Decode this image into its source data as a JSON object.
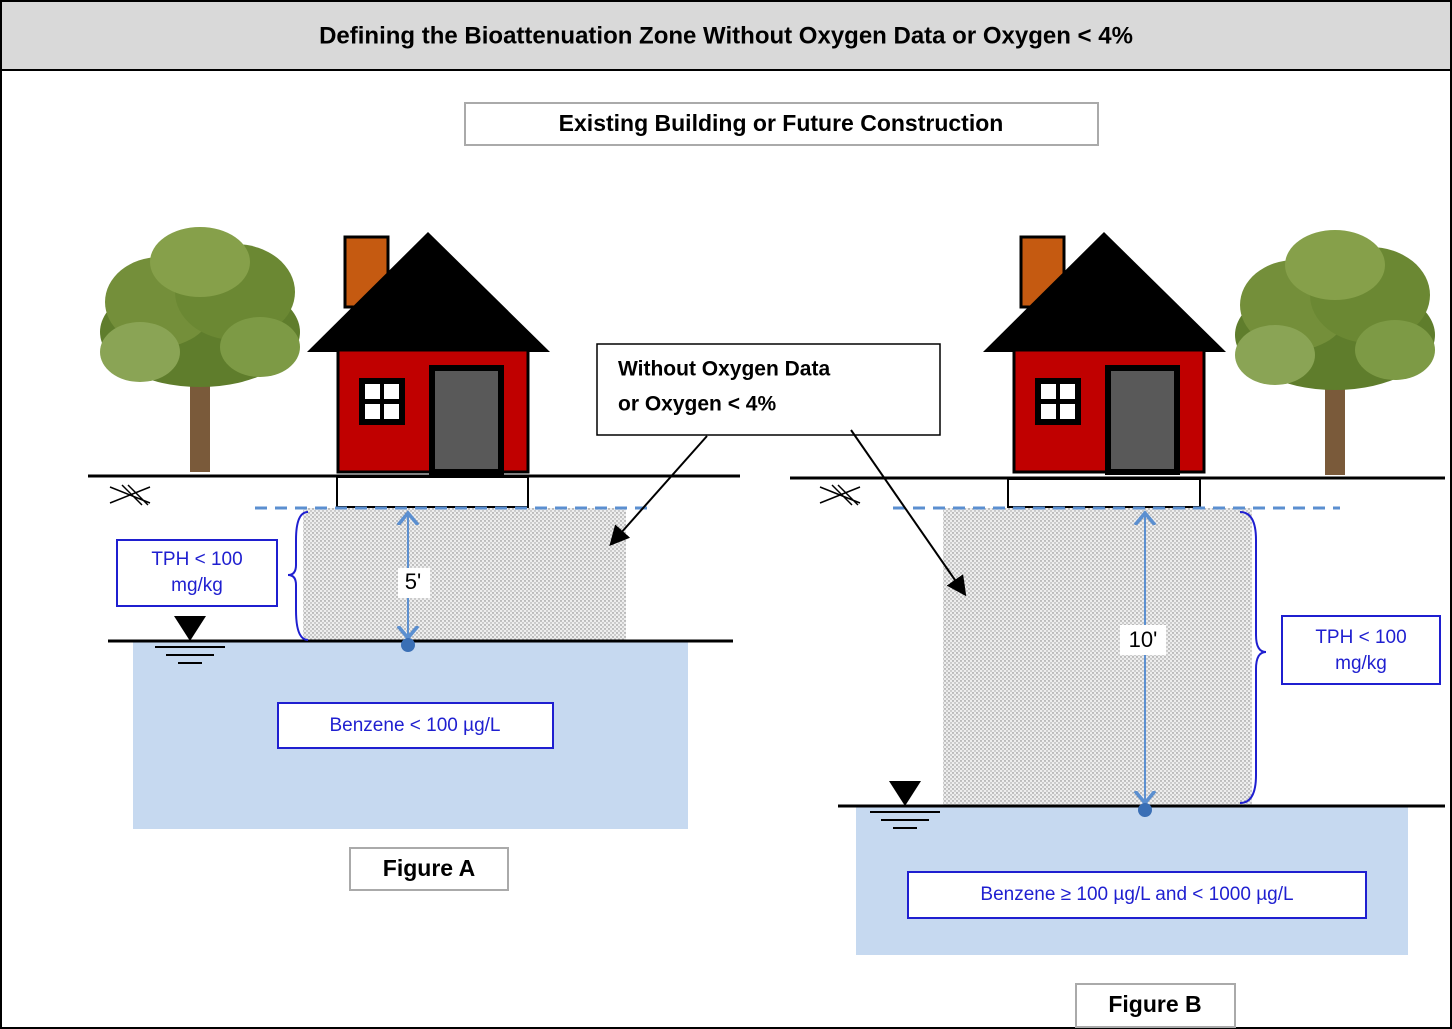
{
  "title": "Defining the Bioattenuation Zone Without Oxygen Data or Oxygen < 4%",
  "subtitle": "Existing Building or Future Construction",
  "callout": {
    "lines": [
      "Without Oxygen Data",
      "or Oxygen < 4%"
    ]
  },
  "figure_a": {
    "label": "Figure A",
    "tph": [
      "TPH < 100",
      "mg/kg"
    ],
    "depth": "5'",
    "benzene": "Benzene < 100 µg/L"
  },
  "figure_b": {
    "label": "Figure B",
    "tph": [
      "TPH < 100",
      "mg/kg"
    ],
    "depth": "10'",
    "benzene": "Benzene ≥ 100 µg/L and < 1000 µg/L"
  }
}
